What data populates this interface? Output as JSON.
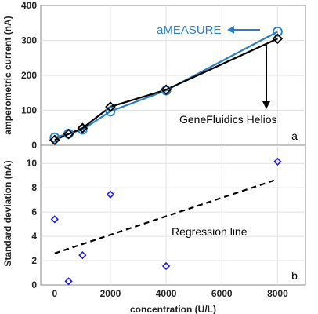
{
  "chart_data": [
    {
      "panel": "a",
      "type": "line",
      "ylabel": "amperometric current (nA)",
      "xlim": [
        -500,
        9000
      ],
      "ylim": [
        0,
        400
      ],
      "yticks": [
        0,
        100,
        200,
        300,
        400
      ],
      "grid": true,
      "series": [
        {
          "name": "aMEASURE",
          "color": "#2b7fc1",
          "marker": "circle",
          "x": [
            0,
            500,
            1000,
            2000,
            4000,
            8000
          ],
          "y": [
            22,
            33,
            45,
            97,
            157,
            325
          ]
        },
        {
          "name": "GeneFluidics Helios",
          "color": "#000000",
          "marker": "diamond",
          "x": [
            0,
            500,
            1000,
            2000,
            4000,
            8000
          ],
          "y": [
            15,
            32,
            49,
            110,
            159,
            305
          ]
        }
      ],
      "panel_label": "a"
    },
    {
      "panel": "b",
      "type": "scatter",
      "xlabel": "concentration (U/L)",
      "ylabel": "Standard deviation (nA)",
      "xlim": [
        -500,
        9000
      ],
      "ylim": [
        0,
        11.5
      ],
      "xticks": [
        0,
        2000,
        4000,
        6000,
        8000
      ],
      "yticks": [
        0,
        2,
        4,
        6,
        8,
        10
      ],
      "grid": true,
      "points": {
        "color": "#1f1fd0",
        "marker": "diamond",
        "x": [
          0,
          500,
          1000,
          2000,
          4000,
          8000
        ],
        "y": [
          5.4,
          0.3,
          2.45,
          7.45,
          1.55,
          10.15
        ]
      },
      "regression": {
        "label": "Regression line",
        "x": [
          0,
          8000
        ],
        "y": [
          2.6,
          8.7
        ]
      },
      "panel_label": "b"
    }
  ]
}
